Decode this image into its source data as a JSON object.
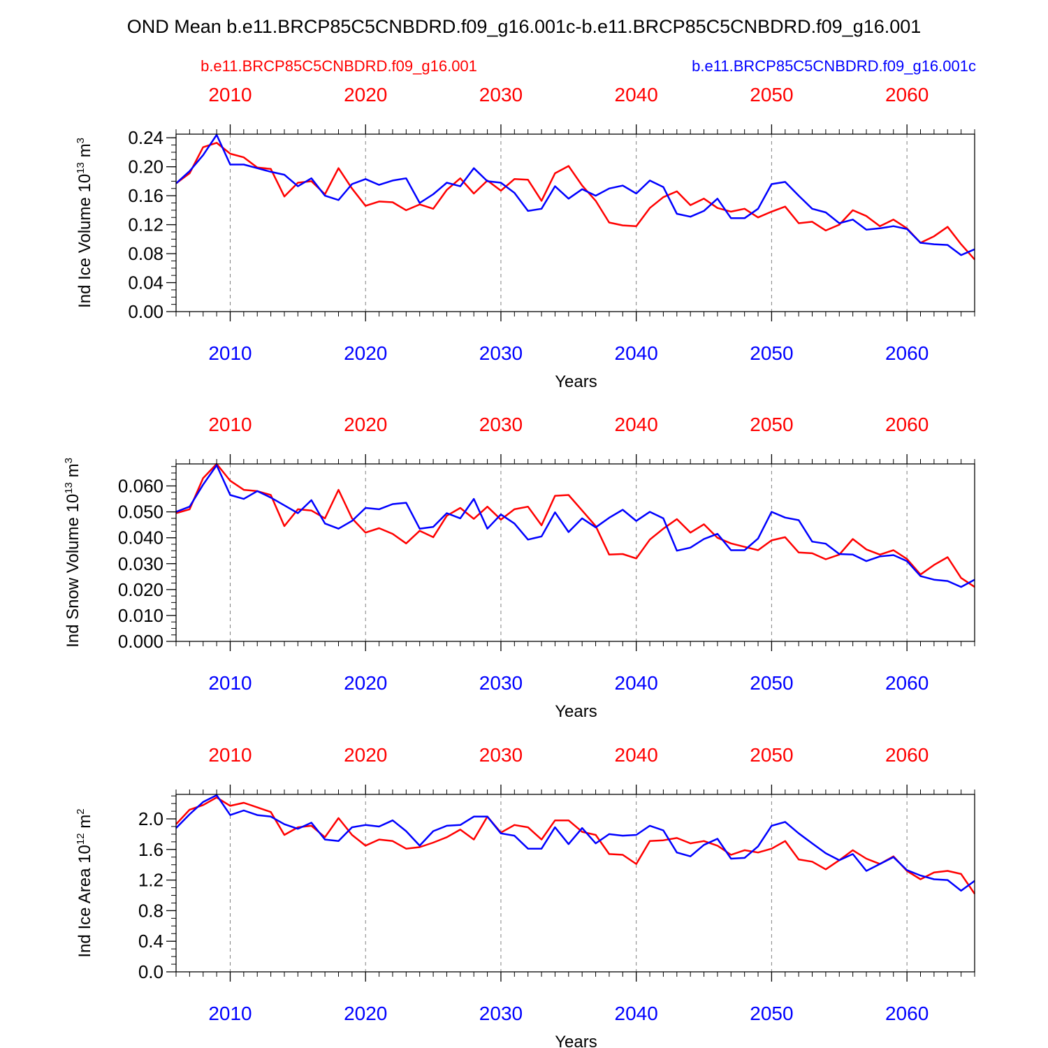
{
  "title": "OND Mean b.e11.BRCP85C5CNBDRD.f09_g16.001c-b.e11.BRCP85C5CNBDRD.f09_g16.001",
  "legend": {
    "left": "b.e11.BRCP85C5CNBDRD.f09_g16.001",
    "right": "b.e11.BRCP85C5CNBDRD.f09_g16.001c"
  },
  "colors": {
    "red": "#ff0000",
    "blue": "#0000ff",
    "axis": "#000000",
    "grid": "#808080"
  },
  "chart_data": [
    {
      "type": "line",
      "id": "ice-volume",
      "ylabel": "Ind Ice Volume 10",
      "ylabel_exp": "13",
      "ylabel_unit": " m",
      "ylabel_unit_exp": "3",
      "xlabel": "Years",
      "xlim": [
        2006,
        2065
      ],
      "ylim": [
        0,
        0.245
      ],
      "yticks": [
        0,
        0.04,
        0.08,
        0.12,
        0.16,
        0.2,
        0.24
      ],
      "ytick_labels": [
        "0.00",
        "0.04",
        "0.08",
        "0.12",
        "0.16",
        "0.20",
        "0.24"
      ],
      "yminor_step": 0.01,
      "xticks": [
        2010,
        2020,
        2030,
        2040,
        2050,
        2060
      ],
      "xtick_labels": [
        "2010",
        "2020",
        "2030",
        "2040",
        "2050",
        "2060"
      ],
      "x_start": 2006,
      "series": [
        {
          "name": "b.e11.BRCP85C5CNBDRD.f09_g16.001",
          "color": "#ff0000",
          "values": [
            0.177,
            0.191,
            0.227,
            0.233,
            0.218,
            0.213,
            0.199,
            0.197,
            0.159,
            0.178,
            0.18,
            0.162,
            0.198,
            0.17,
            0.146,
            0.152,
            0.151,
            0.14,
            0.148,
            0.142,
            0.168,
            0.184,
            0.163,
            0.181,
            0.167,
            0.183,
            0.182,
            0.153,
            0.191,
            0.201,
            0.174,
            0.153,
            0.123,
            0.119,
            0.118,
            0.143,
            0.158,
            0.166,
            0.147,
            0.156,
            0.143,
            0.138,
            0.142,
            0.13,
            0.138,
            0.145,
            0.122,
            0.124,
            0.112,
            0.12,
            0.14,
            0.132,
            0.118,
            0.127,
            0.115,
            0.095,
            0.104,
            0.117,
            0.093,
            0.072
          ]
        },
        {
          "name": "b.e11.BRCP85C5CNBDRD.f09_g16.001c",
          "color": "#0000ff",
          "values": [
            0.177,
            0.194,
            0.216,
            0.244,
            0.203,
            0.203,
            0.198,
            0.193,
            0.189,
            0.173,
            0.184,
            0.16,
            0.154,
            0.176,
            0.183,
            0.175,
            0.181,
            0.184,
            0.15,
            0.162,
            0.178,
            0.173,
            0.198,
            0.18,
            0.178,
            0.164,
            0.139,
            0.142,
            0.173,
            0.156,
            0.169,
            0.16,
            0.17,
            0.174,
            0.163,
            0.181,
            0.172,
            0.135,
            0.131,
            0.139,
            0.156,
            0.129,
            0.129,
            0.142,
            0.176,
            0.179,
            0.16,
            0.142,
            0.137,
            0.122,
            0.127,
            0.113,
            0.115,
            0.118,
            0.114,
            0.095,
            0.093,
            0.092,
            0.078,
            0.086
          ]
        }
      ]
    },
    {
      "type": "line",
      "id": "snow-volume",
      "ylabel": "Ind Snow Volume 10",
      "ylabel_exp": "13",
      "ylabel_unit": " m",
      "ylabel_unit_exp": "3",
      "xlabel": "Years",
      "xlim": [
        2006,
        2065
      ],
      "ylim": [
        0,
        0.0685
      ],
      "yticks": [
        0,
        0.01,
        0.02,
        0.03,
        0.04,
        0.05,
        0.06
      ],
      "ytick_labels": [
        "0.000",
        "0.010",
        "0.020",
        "0.030",
        "0.040",
        "0.050",
        "0.060"
      ],
      "yminor_step": 0.0025,
      "xticks": [
        2010,
        2020,
        2030,
        2040,
        2050,
        2060
      ],
      "xtick_labels": [
        "2010",
        "2020",
        "2030",
        "2040",
        "2050",
        "2060"
      ],
      "x_start": 2006,
      "series": [
        {
          "name": "b.e11.BRCP85C5CNBDRD.f09_g16.001",
          "color": "#ff0000",
          "values": [
            0.0495,
            0.051,
            0.063,
            0.0685,
            0.062,
            0.0585,
            0.058,
            0.0565,
            0.0445,
            0.051,
            0.0505,
            0.0475,
            0.0585,
            0.0475,
            0.042,
            0.0437,
            0.0415,
            0.0378,
            0.0427,
            0.0402,
            0.0485,
            0.0515,
            0.0473,
            0.052,
            0.047,
            0.051,
            0.052,
            0.0448,
            0.0562,
            0.0565,
            0.0505,
            0.0445,
            0.0335,
            0.0337,
            0.032,
            0.0393,
            0.0435,
            0.0472,
            0.042,
            0.0452,
            0.04,
            0.0378,
            0.0365,
            0.0352,
            0.039,
            0.0402,
            0.0343,
            0.034,
            0.0317,
            0.0335,
            0.0395,
            0.0355,
            0.0335,
            0.0352,
            0.0318,
            0.0258,
            0.0295,
            0.0325,
            0.0245,
            0.021
          ]
        },
        {
          "name": "b.e11.BRCP85C5CNBDRD.f09_g16.001c",
          "color": "#0000ff",
          "values": [
            0.05,
            0.052,
            0.0605,
            0.068,
            0.0565,
            0.055,
            0.058,
            0.0555,
            0.0525,
            0.0495,
            0.0545,
            0.0455,
            0.0435,
            0.0465,
            0.0515,
            0.051,
            0.053,
            0.0535,
            0.0435,
            0.0442,
            0.0495,
            0.0475,
            0.055,
            0.0435,
            0.049,
            0.0455,
            0.0393,
            0.0405,
            0.0498,
            0.0422,
            0.0475,
            0.044,
            0.0477,
            0.0508,
            0.0465,
            0.05,
            0.0475,
            0.035,
            0.0362,
            0.0395,
            0.0415,
            0.0352,
            0.0352,
            0.0397,
            0.05,
            0.0478,
            0.0468,
            0.0385,
            0.0377,
            0.0337,
            0.0335,
            0.031,
            0.0328,
            0.0333,
            0.031,
            0.0252,
            0.0238,
            0.0233,
            0.021,
            0.0238
          ]
        }
      ]
    },
    {
      "type": "line",
      "id": "ice-area",
      "ylabel": "Ind Ice Area 10",
      "ylabel_exp": "12",
      "ylabel_unit": " m",
      "ylabel_unit_exp": "2",
      "xlabel": "Years",
      "xlim": [
        2006,
        2065
      ],
      "ylim": [
        0,
        2.32
      ],
      "yticks": [
        0,
        0.4,
        0.8,
        1.2,
        1.6,
        2.0
      ],
      "ytick_labels": [
        "0.0",
        "0.4",
        "0.8",
        "1.2",
        "1.6",
        "2.0"
      ],
      "yminor_step": 0.1,
      "xticks": [
        2010,
        2020,
        2030,
        2040,
        2050,
        2060
      ],
      "xtick_labels": [
        "2010",
        "2020",
        "2030",
        "2040",
        "2050",
        "2060"
      ],
      "x_start": 2006,
      "series": [
        {
          "name": "b.e11.BRCP85C5CNBDRD.f09_g16.001",
          "color": "#ff0000",
          "values": [
            1.93,
            2.12,
            2.18,
            2.28,
            2.17,
            2.21,
            2.15,
            2.09,
            1.79,
            1.89,
            1.91,
            1.76,
            2.01,
            1.79,
            1.65,
            1.73,
            1.71,
            1.61,
            1.63,
            1.69,
            1.76,
            1.86,
            1.73,
            2.03,
            1.82,
            1.92,
            1.89,
            1.73,
            1.98,
            1.98,
            1.83,
            1.79,
            1.54,
            1.53,
            1.41,
            1.71,
            1.72,
            1.75,
            1.68,
            1.71,
            1.65,
            1.53,
            1.59,
            1.56,
            1.61,
            1.71,
            1.47,
            1.44,
            1.34,
            1.46,
            1.59,
            1.48,
            1.41,
            1.51,
            1.32,
            1.21,
            1.3,
            1.32,
            1.28,
            1.02
          ]
        },
        {
          "name": "b.e11.BRCP85C5CNBDRD.f09_g16.001c",
          "color": "#0000ff",
          "values": [
            1.88,
            2.06,
            2.22,
            2.31,
            2.05,
            2.11,
            2.05,
            2.03,
            1.93,
            1.87,
            1.95,
            1.73,
            1.71,
            1.89,
            1.92,
            1.9,
            1.98,
            1.84,
            1.65,
            1.84,
            1.91,
            1.92,
            2.03,
            2.03,
            1.81,
            1.78,
            1.61,
            1.61,
            1.89,
            1.67,
            1.88,
            1.68,
            1.8,
            1.78,
            1.79,
            1.91,
            1.85,
            1.56,
            1.51,
            1.66,
            1.74,
            1.48,
            1.49,
            1.64,
            1.91,
            1.96,
            1.81,
            1.68,
            1.55,
            1.46,
            1.54,
            1.32,
            1.41,
            1.5,
            1.33,
            1.26,
            1.21,
            1.2,
            1.06,
            1.19
          ]
        }
      ]
    }
  ]
}
